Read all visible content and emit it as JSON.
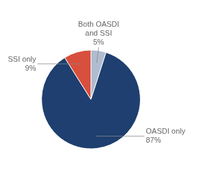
{
  "chart_data": {
    "type": "pie",
    "categories": [
      "Both OASDI\nand SSI",
      "OASDI only",
      "SSI only"
    ],
    "values": [
      5,
      87,
      9
    ],
    "value_labels": [
      "5%",
      "87%",
      "9%"
    ],
    "colors": [
      "#b0bccf",
      "#1e3f6f",
      "#d94f3d"
    ],
    "data_labels": true
  }
}
